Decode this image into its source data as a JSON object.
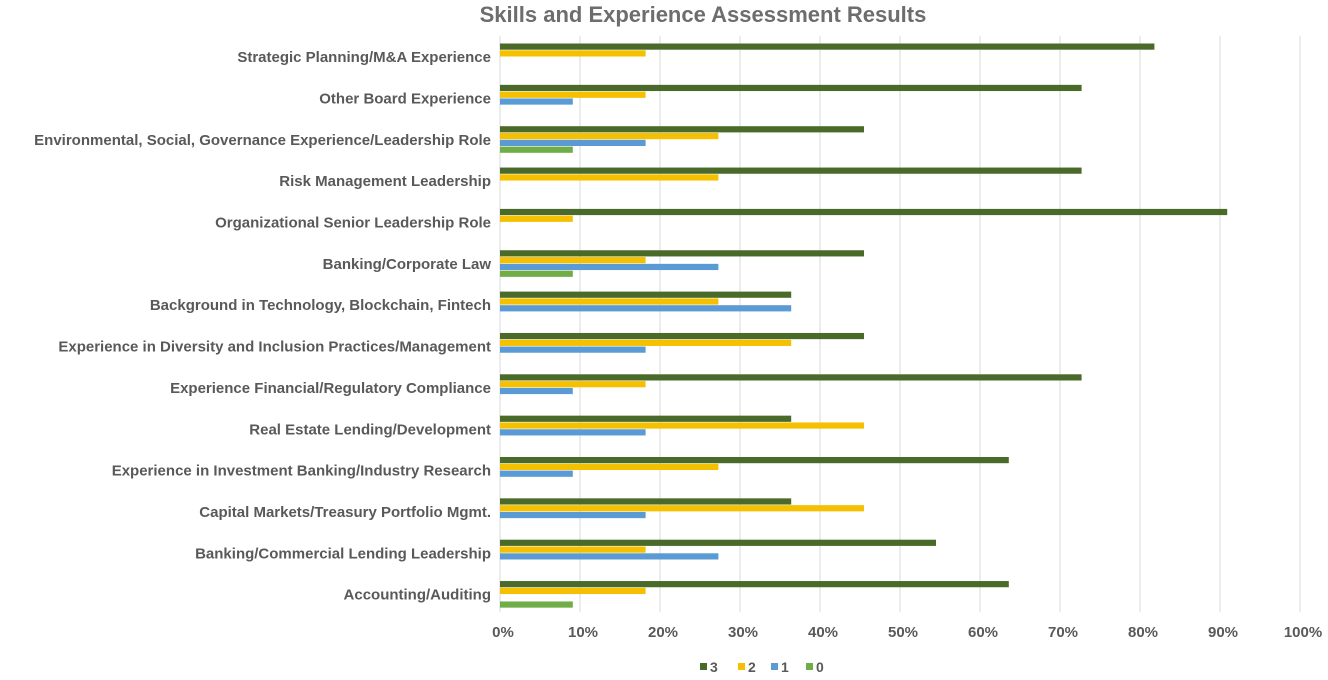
{
  "chart_data": {
    "type": "bar",
    "orientation": "horizontal",
    "title": "Skills and Experience Assessment Results",
    "xlabel": "",
    "ylabel": "",
    "xlim": [
      0,
      100
    ],
    "grid": true,
    "legend_position": "bottom",
    "ticks": [
      "0%",
      "10%",
      "20%",
      "30%",
      "40%",
      "50%",
      "60%",
      "70%",
      "80%",
      "90%",
      "100%"
    ],
    "tick_values": [
      0,
      10,
      20,
      30,
      40,
      50,
      60,
      70,
      80,
      90,
      100
    ],
    "categories": [
      "Strategic Planning/M&A Experience",
      "Other Board Experience",
      "Environmental, Social, Governance Experience/Leadership Role",
      "Risk Management Leadership",
      "Organizational Senior Leadership Role",
      "Banking/Corporate Law",
      "Background in Technology, Blockchain, Fintech",
      "Experience in Diversity and Inclusion Practices/Management",
      "Experience Financial/Regulatory Compliance",
      "Real Estate Lending/Development",
      "Experience in Investment Banking/Industry Research",
      "Capital Markets/Treasury Portfolio Mgmt.",
      "Banking/Commercial Lending Leadership",
      "Accounting/Auditing"
    ],
    "series": [
      {
        "name": "3",
        "color": "#4a6a2a",
        "values": [
          81.8,
          72.7,
          45.5,
          72.7,
          90.9,
          45.5,
          36.4,
          45.5,
          72.7,
          36.4,
          63.6,
          36.4,
          54.5,
          63.6
        ]
      },
      {
        "name": "2",
        "color": "#f5c000",
        "values": [
          18.2,
          18.2,
          27.3,
          27.3,
          9.1,
          18.2,
          27.3,
          36.4,
          18.2,
          45.5,
          27.3,
          45.5,
          18.2,
          18.2
        ]
      },
      {
        "name": "1",
        "color": "#5b9bd5",
        "values": [
          0,
          9.1,
          18.2,
          0,
          0,
          27.3,
          36.4,
          18.2,
          9.1,
          18.2,
          9.1,
          18.2,
          27.3,
          0
        ]
      },
      {
        "name": "0",
        "color": "#70ad47",
        "values": [
          0,
          0,
          9.1,
          0,
          0,
          9.1,
          0,
          0,
          0,
          0,
          0,
          0,
          0,
          9.1
        ]
      }
    ]
  }
}
